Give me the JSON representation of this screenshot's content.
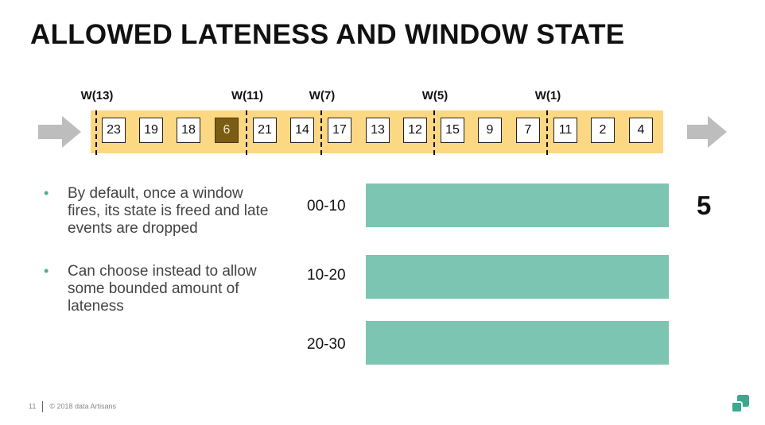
{
  "slide": {
    "title": "ALLOWED LATENESS AND WINDOW STATE",
    "page_number": "11",
    "copyright": "© 2018 data Artisans"
  },
  "stream": {
    "elements": [
      {
        "value": "23",
        "late": false
      },
      {
        "value": "19",
        "late": false
      },
      {
        "value": "18",
        "late": false
      },
      {
        "value": "6",
        "late": true
      },
      {
        "value": "21",
        "late": false
      },
      {
        "value": "14",
        "late": false
      },
      {
        "value": "17",
        "late": false
      },
      {
        "value": "13",
        "late": false
      },
      {
        "value": "12",
        "late": false
      },
      {
        "value": "15",
        "late": false
      },
      {
        "value": "9",
        "late": false
      },
      {
        "value": "7",
        "late": false
      },
      {
        "value": "11",
        "late": false
      },
      {
        "value": "2",
        "late": false
      },
      {
        "value": "4",
        "late": false
      }
    ],
    "watermarks": [
      "W(13)",
      "W(11)",
      "W(7)",
      "W(5)",
      "W(1)"
    ]
  },
  "bullets": [
    "By default, once a window fires, its state is freed and late events are dropped",
    "Can choose instead to allow some bounded amount of lateness"
  ],
  "windows": [
    {
      "label": "00-10",
      "count": "5"
    },
    {
      "label": "10-20",
      "count": ""
    },
    {
      "label": "20-30",
      "count": ""
    }
  ],
  "colors": {
    "stream_band": "#fcd883",
    "late_element": "#7a5c14",
    "window_bar": "#7cc5b3",
    "arrow": "#bdbdbd",
    "bullet": "#4fae98",
    "logo": "#3aa98d"
  },
  "icons": {
    "input_arrow": "arrow-right-icon",
    "output_arrow": "arrow-right-icon",
    "logo": "data-artisans-logo-icon"
  }
}
